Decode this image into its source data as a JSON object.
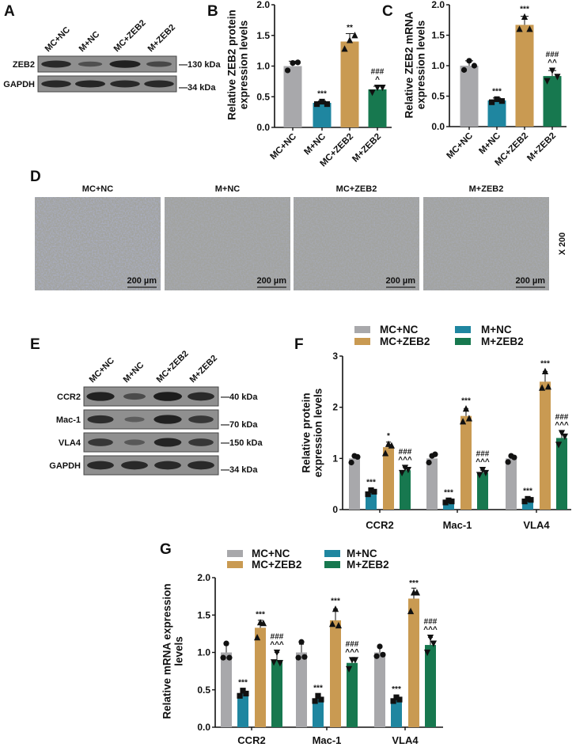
{
  "panel_labels": {
    "A": "A",
    "B": "B",
    "C": "C",
    "D": "D",
    "E": "E",
    "F": "F",
    "G": "G"
  },
  "colors": {
    "MC+NC": "#a8a8ab",
    "M+NC": "#1f86a0",
    "MC+ZEB2": "#c99a52",
    "M+ZEB2": "#17784f",
    "axis": "#111111",
    "blot_bg": "#8f8f8f",
    "band": "#1c1c1c"
  },
  "groups": [
    "MC+NC",
    "M+NC",
    "MC+ZEB2",
    "M+ZEB2"
  ],
  "panel_a": {
    "lanes": [
      "MC+NC",
      "M+NC",
      "MC+ZEB2",
      "M+ZEB2"
    ],
    "rows": [
      {
        "label": "ZEB2",
        "marker": "—130 kDa",
        "intensity": [
          0.85,
          0.4,
          0.95,
          0.5
        ]
      },
      {
        "label": "GAPDH",
        "marker": "—34 kDa",
        "intensity": [
          0.85,
          0.88,
          0.85,
          0.85
        ]
      }
    ]
  },
  "panel_d": {
    "titles": [
      "MC+NC",
      "M+NC",
      "MC+ZEB2",
      "M+ZEB2"
    ],
    "scale_bar": "200 µm",
    "magnification": "X 200"
  },
  "panel_e": {
    "lanes": [
      "MC+NC",
      "M+NC",
      "MC+ZEB2",
      "M+ZEB2"
    ],
    "rows": [
      {
        "label": "CCR2",
        "marker": "—40 kDa",
        "intensity": [
          0.95,
          0.45,
          1.0,
          0.85
        ]
      },
      {
        "label": "Mac-1",
        "marker": "—70 kDa",
        "intensity": [
          0.8,
          0.25,
          0.95,
          0.7
        ]
      },
      {
        "label": "VLA4",
        "marker": "—150 kDa",
        "intensity": [
          0.7,
          0.3,
          0.9,
          0.7
        ]
      },
      {
        "label": "GAPDH",
        "marker": "—34 kDa",
        "intensity": [
          0.85,
          0.85,
          0.85,
          0.85
        ]
      }
    ]
  },
  "chart_data": [
    {
      "panel": "B",
      "type": "bar",
      "title": "",
      "ylabel": [
        "Relative ZEB2 protein",
        "expression levels"
      ],
      "xlabel": "",
      "ylim": [
        0,
        2
      ],
      "yticks": [
        0,
        0.5,
        1,
        1.5,
        2
      ],
      "ytick_labels": [
        "0.0",
        "0.5",
        "1.0",
        "1.5",
        "2.0"
      ],
      "categories": [
        "MC+NC",
        "M+NC",
        "MC+ZEB2",
        "M+ZEB2"
      ],
      "values": [
        1.0,
        0.4,
        1.4,
        0.62
      ],
      "errors": [
        0.08,
        0.03,
        0.13,
        0.05
      ],
      "points": [
        [
          0.93,
          1.05,
          1.06
        ],
        [
          0.38,
          0.42,
          0.38
        ],
        [
          1.28,
          1.42,
          1.5
        ],
        [
          0.57,
          0.65,
          0.65
        ]
      ],
      "annotations": [
        [],
        [
          "***"
        ],
        [
          "**"
        ],
        [
          "###",
          "^"
        ]
      ]
    },
    {
      "panel": "C",
      "type": "bar",
      "title": "",
      "ylabel": [
        "Relative ZEB2 mRNA",
        "expression levels"
      ],
      "xlabel": "",
      "ylim": [
        0,
        2
      ],
      "yticks": [
        0,
        0.5,
        1,
        1.5,
        2
      ],
      "ytick_labels": [
        "0.0",
        "0.5",
        "1.0",
        "1.5",
        "2.0"
      ],
      "categories": [
        "MC+NC",
        "M+NC",
        "MC+ZEB2",
        "M+ZEB2"
      ],
      "values": [
        1.0,
        0.43,
        1.67,
        0.83
      ],
      "errors": [
        0.08,
        0.04,
        0.14,
        0.09
      ],
      "points": [
        [
          0.93,
          1.08,
          1.0
        ],
        [
          0.4,
          0.45,
          0.42
        ],
        [
          1.6,
          1.8,
          1.6
        ],
        [
          0.75,
          0.92,
          0.82
        ]
      ],
      "annotations": [
        [],
        [
          "***"
        ],
        [
          "***"
        ],
        [
          "###",
          "^^"
        ]
      ]
    },
    {
      "panel": "F",
      "type": "bar",
      "title": "",
      "ylabel": [
        "Relative protein",
        "expression levels"
      ],
      "xlabel": "",
      "ylim": [
        0,
        3
      ],
      "yticks": [
        0,
        1,
        2,
        3
      ],
      "ytick_labels": [
        "0",
        "1",
        "2",
        "3"
      ],
      "categories": [
        "CCR2",
        "Mac-1",
        "VLA4"
      ],
      "legend": {
        "placement": "top",
        "entries": [
          "MC+NC",
          "MC+ZEB2",
          "M+NC",
          "M+ZEB2"
        ]
      },
      "series": [
        {
          "name": "MC+NC",
          "values": [
            1.0,
            1.0,
            1.0
          ],
          "errors": [
            0.06,
            0.08,
            0.07
          ],
          "points": [
            [
              0.92,
              1.05,
              1.03
            ],
            [
              0.92,
              1.05,
              1.08
            ],
            [
              0.93,
              1.05,
              1.02
            ]
          ],
          "annotations": [
            [],
            [],
            []
          ]
        },
        {
          "name": "M+NC",
          "values": [
            0.35,
            0.16,
            0.19
          ],
          "errors": [
            0.05,
            0.03,
            0.03
          ],
          "points": [
            [
              0.3,
              0.38,
              0.35
            ],
            [
              0.14,
              0.18,
              0.16
            ],
            [
              0.16,
              0.21,
              0.19
            ]
          ],
          "annotations": [
            [
              "***"
            ],
            [
              "***"
            ],
            [
              "***"
            ]
          ]
        },
        {
          "name": "MC+ZEB2",
          "values": [
            1.22,
            1.83,
            2.5
          ],
          "errors": [
            0.1,
            0.14,
            0.2
          ],
          "points": [
            [
              1.1,
              1.28,
              1.25
            ],
            [
              1.72,
              1.97,
              1.78
            ],
            [
              2.38,
              2.7,
              2.4
            ]
          ],
          "annotations": [
            [
              "*"
            ],
            [
              "***"
            ],
            [
              "***"
            ]
          ]
        },
        {
          "name": "M+ZEB2",
          "values": [
            0.77,
            0.72,
            1.4
          ],
          "errors": [
            0.05,
            0.05,
            0.12
          ],
          "points": [
            [
              0.72,
              0.82,
              0.78
            ],
            [
              0.68,
              0.78,
              0.72
            ],
            [
              1.27,
              1.5,
              1.43
            ]
          ],
          "annotations": [
            [
              "###",
              "^^^"
            ],
            [
              "###",
              "^^^"
            ],
            [
              "###",
              "^^^"
            ]
          ]
        }
      ]
    },
    {
      "panel": "G",
      "type": "bar",
      "title": "",
      "ylabel": [
        "Relative mRNA expression",
        "levels"
      ],
      "xlabel": "",
      "ylim": [
        0,
        2
      ],
      "yticks": [
        0,
        0.5,
        1,
        1.5,
        2
      ],
      "ytick_labels": [
        "0.0",
        "0.5",
        "1.0",
        "1.5",
        "2.0"
      ],
      "categories": [
        "CCR2",
        "Mac-1",
        "VLA4"
      ],
      "legend": {
        "placement": "top",
        "entries": [
          "MC+NC",
          "MC+ZEB2",
          "M+NC",
          "M+ZEB2"
        ]
      },
      "series": [
        {
          "name": "MC+NC",
          "values": [
            1.0,
            1.0,
            1.0
          ],
          "errors": [
            0.1,
            0.11,
            0.07
          ],
          "points": [
            [
              0.93,
              1.12,
              0.93
            ],
            [
              0.93,
              1.14,
              0.94
            ],
            [
              0.95,
              1.08,
              0.97
            ]
          ],
          "annotations": [
            [],
            [],
            []
          ]
        },
        {
          "name": "M+NC",
          "values": [
            0.45,
            0.38,
            0.37
          ],
          "errors": [
            0.04,
            0.04,
            0.03
          ],
          "points": [
            [
              0.42,
              0.49,
              0.45
            ],
            [
              0.35,
              0.42,
              0.37
            ],
            [
              0.35,
              0.4,
              0.37
            ]
          ],
          "annotations": [
            [
              "***"
            ],
            [
              "***"
            ],
            [
              "***"
            ]
          ]
        },
        {
          "name": "MC+ZEB2",
          "values": [
            1.33,
            1.43,
            1.72
          ],
          "errors": [
            0.1,
            0.15,
            0.14
          ],
          "points": [
            [
              1.2,
              1.4,
              1.39
            ],
            [
              1.38,
              1.58,
              1.36
            ],
            [
              1.55,
              1.8,
              1.8
            ]
          ],
          "annotations": [
            [
              "***"
            ],
            [
              "***"
            ],
            [
              "***"
            ]
          ]
        },
        {
          "name": "M+ZEB2",
          "values": [
            0.9,
            0.86,
            1.1
          ],
          "errors": [
            0.1,
            0.07,
            0.1
          ],
          "points": [
            [
              0.87,
              1.0,
              0.86
            ],
            [
              0.78,
              0.9,
              0.9
            ],
            [
              1.0,
              1.2,
              1.12
            ]
          ],
          "annotations": [
            [
              "###",
              "^^^"
            ],
            [
              "###",
              "^^^"
            ],
            [
              "###",
              "^^^"
            ]
          ]
        }
      ]
    }
  ]
}
